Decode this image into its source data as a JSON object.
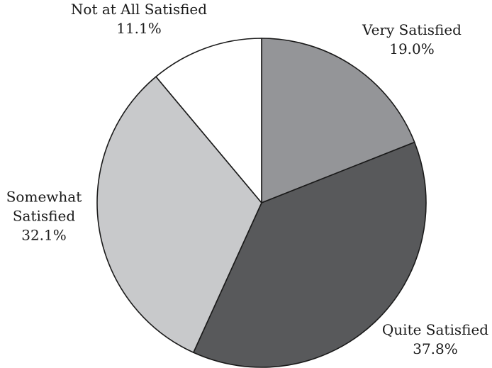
{
  "chart_data": {
    "type": "pie",
    "title": "",
    "start_angle_deg": 0,
    "direction": "clockwise",
    "slices": [
      {
        "label_lines": [
          "Very Satisfied"
        ],
        "value_label": "19.0%",
        "value": 19.0,
        "color": "#949598"
      },
      {
        "label_lines": [
          "Quite Satisfied"
        ],
        "value_label": "37.8%",
        "value": 37.8,
        "color": "#58595b"
      },
      {
        "label_lines": [
          "Somewhat",
          "Satisfied"
        ],
        "value_label": "32.1%",
        "value": 32.1,
        "color": "#c8c9cb"
      },
      {
        "label_lines": [
          "Not at All Satisfied"
        ],
        "value_label": "11.1%",
        "value": 11.1,
        "color": "#ffffff"
      }
    ],
    "outline_color": "#1a1a1a"
  }
}
